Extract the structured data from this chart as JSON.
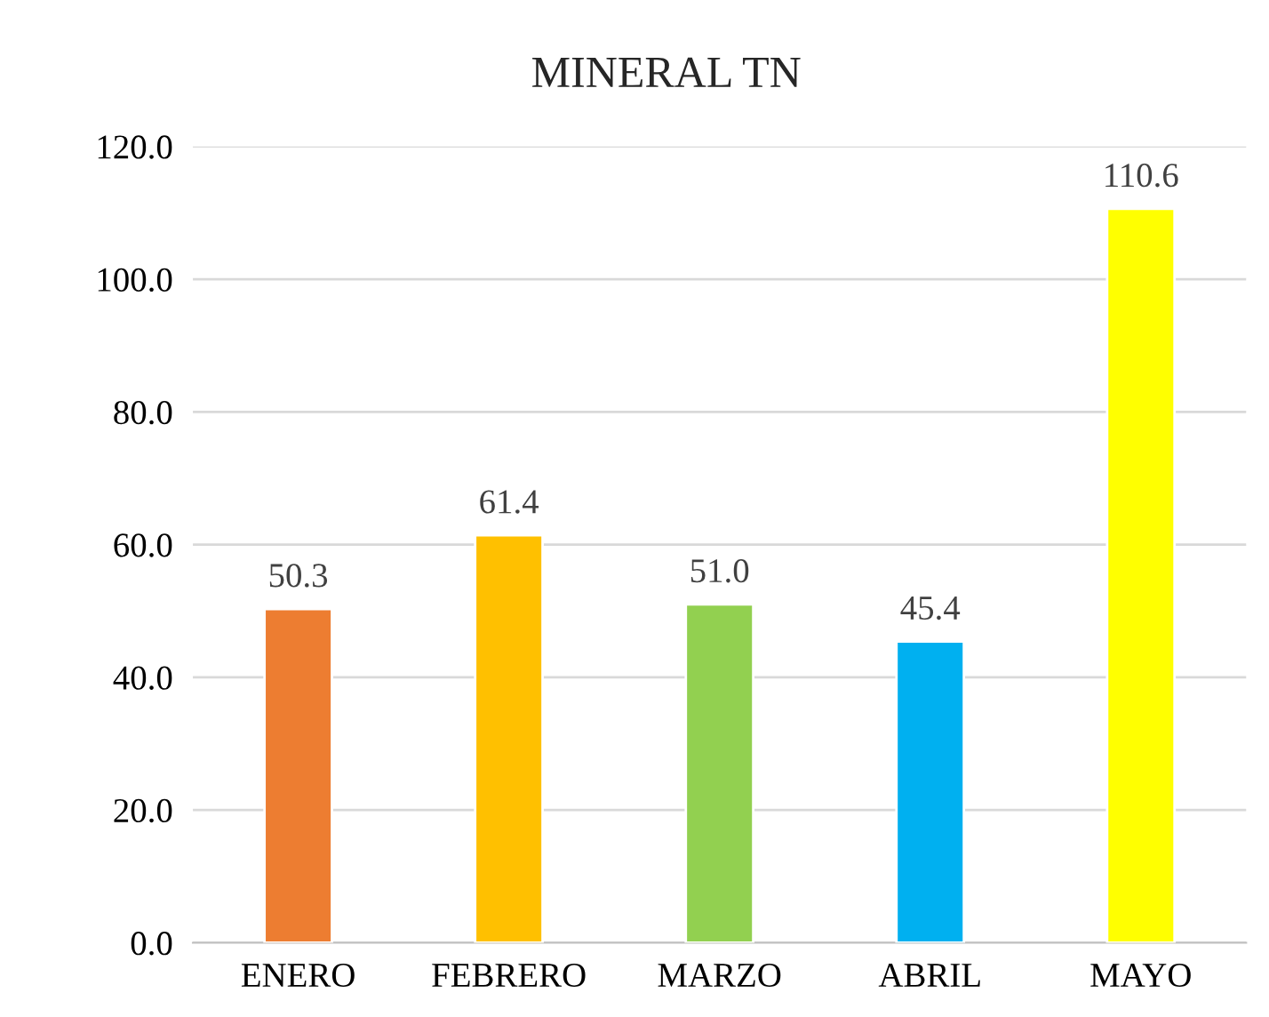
{
  "chart_data": {
    "type": "bar",
    "title": "MINERAL TN",
    "categories": [
      "ENERO",
      "FEBRERO",
      "MARZO",
      "ABRIL",
      "MAYO"
    ],
    "values": [
      50.3,
      61.4,
      51.0,
      45.4,
      110.6
    ],
    "colors": [
      "#ed7d31",
      "#ffc000",
      "#92d050",
      "#00b0f0",
      "#ffff00"
    ],
    "value_labels": [
      "50.3",
      "61.4",
      "51.0",
      "45.4",
      "110.6"
    ],
    "ylim": [
      0,
      120
    ],
    "yticks": [
      {
        "value": 0,
        "label": "0.0"
      },
      {
        "value": 20,
        "label": "20.0"
      },
      {
        "value": 40,
        "label": "40.0"
      },
      {
        "value": 60,
        "label": "60.0"
      },
      {
        "value": 80,
        "label": "80.0"
      },
      {
        "value": 100,
        "label": "100.0"
      },
      {
        "value": 120,
        "label": "120.0"
      }
    ],
    "grid": "y",
    "legend": false
  }
}
